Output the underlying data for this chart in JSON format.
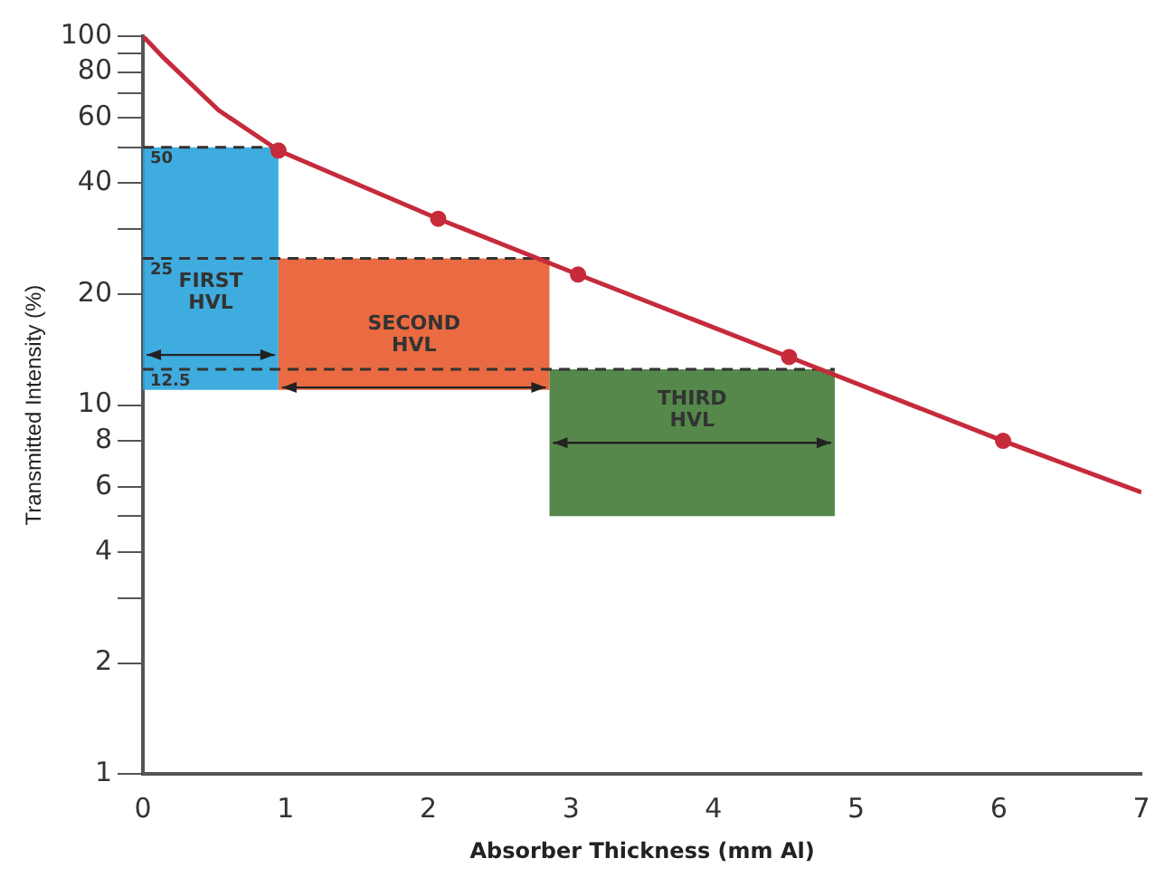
{
  "chart_data": {
    "type": "line",
    "xlabel": "Absorber Thickness (mm Al)",
    "ylabel": "Transmitted Intensity (%)",
    "log": "y",
    "xlim": [
      0,
      7
    ],
    "xticks": [
      0,
      1,
      2,
      3,
      4,
      5,
      6,
      7
    ],
    "ylim": [
      1,
      100
    ],
    "yticks": [
      1,
      2,
      {
        "value": 3,
        "label": null
      },
      4,
      {
        "value": 5,
        "label": null
      },
      6,
      8,
      10,
      20,
      {
        "value": 30,
        "label": null
      },
      40,
      {
        "value": 50,
        "label": null
      },
      60,
      {
        "value": 70,
        "label": null
      },
      80,
      {
        "value": 90,
        "label": null
      },
      100
    ],
    "series": [
      {
        "color": "#c62b3b",
        "x": [
          0,
          0.15,
          0.53,
          0.95,
          2.07,
          3.05,
          4.53,
          6.03,
          7
        ],
        "values": [
          100,
          87,
          63,
          49,
          32,
          22.6,
          13.5,
          8,
          5.8
        ],
        "marker": "none"
      },
      {
        "type": "scatter",
        "color": "#c62b3b",
        "x": [
          0.95,
          2.07,
          3.05,
          4.53,
          6.03
        ],
        "values": [
          49,
          32,
          22.6,
          13.5,
          8
        ],
        "marker": "circle"
      }
    ],
    "ref_lines": [
      {
        "axis": "y",
        "value": 50,
        "label": "50",
        "line_style": "dashed"
      },
      {
        "axis": "y",
        "value": 25,
        "label": "25",
        "line_style": "dashed"
      },
      {
        "axis": "y",
        "value": 12.5,
        "label": "12.5",
        "line_style": "dashed"
      }
    ],
    "bands": [
      {
        "axis": "x",
        "from": 0,
        "to": 0.95,
        "label": "FIRST HVL",
        "color": "#2aa3dc"
      },
      {
        "axis": "x",
        "from": 0.95,
        "to": 2.85,
        "label": "SECOND HVL",
        "color": "#e85a2c"
      },
      {
        "axis": "x",
        "from": 2.85,
        "to": 4.85,
        "label": "THIRD HVL",
        "color": "#427b36"
      }
    ],
    "grid": false,
    "legend": false
  }
}
